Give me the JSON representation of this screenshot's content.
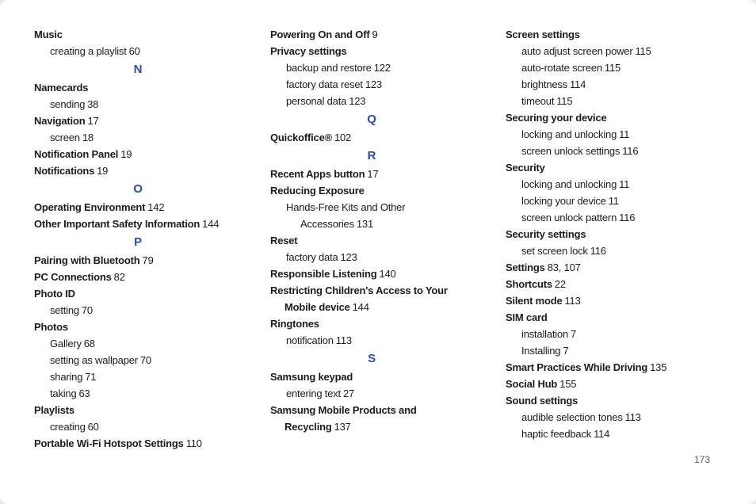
{
  "page": {
    "number": "173",
    "accent_color": "#2e4ca6",
    "text_color": "#1c1c1c"
  },
  "columns": [
    {
      "items": [
        {
          "t": "entry",
          "text": "Music"
        },
        {
          "t": "sub",
          "text": "creating a playlist",
          "page": "60"
        },
        {
          "t": "letter",
          "text": "N"
        },
        {
          "t": "entry",
          "text": "Namecards"
        },
        {
          "t": "sub",
          "text": "sending",
          "page": "38"
        },
        {
          "t": "entry",
          "text": "Navigation",
          "page": "17"
        },
        {
          "t": "sub",
          "text": "screen",
          "page": "18"
        },
        {
          "t": "entry",
          "text": "Notification Panel",
          "page": "19"
        },
        {
          "t": "entry",
          "text": "Notifications",
          "page": "19"
        },
        {
          "t": "letter",
          "text": "O"
        },
        {
          "t": "entry",
          "text": "Operating Environment",
          "page": "142"
        },
        {
          "t": "entry",
          "text": "Other Important Safety Information",
          "page": "144"
        },
        {
          "t": "letter",
          "text": "P"
        },
        {
          "t": "entry",
          "text": "Pairing with Bluetooth",
          "page": "79"
        },
        {
          "t": "entry",
          "text": "PC Connections",
          "page": "82"
        },
        {
          "t": "entry",
          "text": "Photo ID"
        },
        {
          "t": "sub",
          "text": "setting",
          "page": "70"
        },
        {
          "t": "entry",
          "text": "Photos"
        },
        {
          "t": "sub",
          "text": "Gallery",
          "page": "68"
        },
        {
          "t": "sub",
          "text": "setting as wallpaper",
          "page": "70"
        },
        {
          "t": "sub",
          "text": "sharing",
          "page": "71"
        },
        {
          "t": "sub",
          "text": "taking",
          "page": "63"
        },
        {
          "t": "entry",
          "text": "Playlists"
        },
        {
          "t": "sub",
          "text": "creating",
          "page": "60"
        },
        {
          "t": "entry",
          "text": "Portable Wi-Fi Hotspot Settings",
          "page": "110"
        }
      ]
    },
    {
      "items": [
        {
          "t": "entry",
          "text": "Powering On and Off",
          "page": "9"
        },
        {
          "t": "entry",
          "text": "Privacy settings"
        },
        {
          "t": "sub",
          "text": "backup and restore",
          "page": "122"
        },
        {
          "t": "sub",
          "text": "factory data reset",
          "page": "123"
        },
        {
          "t": "sub",
          "text": "personal data",
          "page": "123"
        },
        {
          "t": "letter",
          "text": "Q"
        },
        {
          "t": "entry",
          "text": "Quickoffice®",
          "page": "102"
        },
        {
          "t": "letter",
          "text": "R"
        },
        {
          "t": "entry",
          "text": "Recent Apps button",
          "page": "17"
        },
        {
          "t": "entry",
          "text": "Reducing Exposure"
        },
        {
          "t": "sub",
          "text": "Hands-Free Kits and Other"
        },
        {
          "t": "sub2",
          "text": "Accessories",
          "page": "131"
        },
        {
          "t": "entry",
          "text": "Reset"
        },
        {
          "t": "sub",
          "text": "factory data",
          "page": "123"
        },
        {
          "t": "entry",
          "text": "Responsible Listening",
          "page": "140"
        },
        {
          "t": "entry",
          "text": "Restricting Children's Access to Your"
        },
        {
          "t": "entry2",
          "text": "Mobile device",
          "page": "144"
        },
        {
          "t": "entry",
          "text": "Ringtones"
        },
        {
          "t": "sub",
          "text": "notification",
          "page": "113"
        },
        {
          "t": "letter",
          "text": "S"
        },
        {
          "t": "entry",
          "text": "Samsung keypad"
        },
        {
          "t": "sub",
          "text": "entering text",
          "page": "27"
        },
        {
          "t": "entry",
          "text": "Samsung Mobile Products and"
        },
        {
          "t": "entry2",
          "text": "Recycling",
          "page": "137"
        }
      ]
    },
    {
      "items": [
        {
          "t": "entry",
          "text": "Screen settings"
        },
        {
          "t": "sub",
          "text": "auto adjust screen power",
          "page": "115"
        },
        {
          "t": "sub",
          "text": "auto-rotate screen",
          "page": "115"
        },
        {
          "t": "sub",
          "text": "brightness",
          "page": "114"
        },
        {
          "t": "sub",
          "text": "timeout",
          "page": "115"
        },
        {
          "t": "entry",
          "text": "Securing your device"
        },
        {
          "t": "sub",
          "text": "locking and unlocking",
          "page": "11"
        },
        {
          "t": "sub",
          "text": "screen unlock settings",
          "page": "116"
        },
        {
          "t": "entry",
          "text": "Security"
        },
        {
          "t": "sub",
          "text": "locking and unlocking",
          "page": "11"
        },
        {
          "t": "sub",
          "text": "locking your device",
          "page": "11"
        },
        {
          "t": "sub",
          "text": "screen unlock pattern",
          "page": "116"
        },
        {
          "t": "entry",
          "text": "Security settings"
        },
        {
          "t": "sub",
          "text": "set screen lock",
          "page": "116"
        },
        {
          "t": "entry",
          "text": "Settings",
          "page": "83, 107"
        },
        {
          "t": "entry",
          "text": "Shortcuts",
          "page": "22"
        },
        {
          "t": "entry",
          "text": "Silent mode",
          "page": "113"
        },
        {
          "t": "entry",
          "text": "SIM card"
        },
        {
          "t": "sub",
          "text": "installation",
          "page": "7"
        },
        {
          "t": "sub",
          "text": "Installing",
          "page": "7"
        },
        {
          "t": "entry",
          "text": "Smart Practices While Driving",
          "page": "135"
        },
        {
          "t": "entry",
          "text": "Social Hub",
          "page": "155"
        },
        {
          "t": "entry",
          "text": "Sound settings"
        },
        {
          "t": "sub",
          "text": "audible selection tones",
          "page": "113"
        },
        {
          "t": "sub",
          "text": "haptic feedback",
          "page": "114"
        }
      ]
    }
  ]
}
